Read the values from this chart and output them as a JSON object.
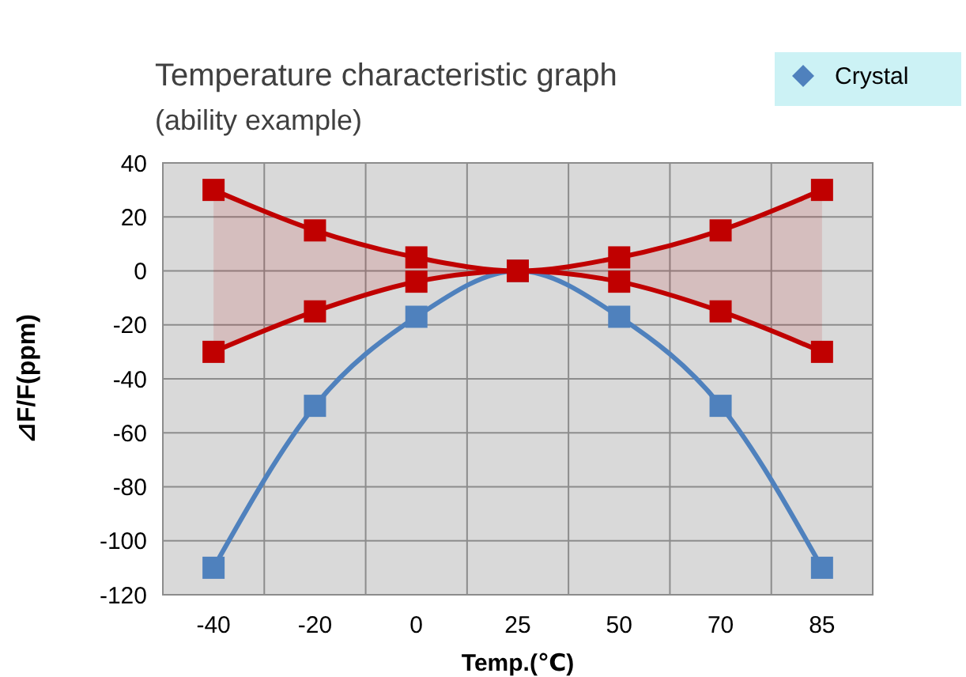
{
  "chart_data": {
    "type": "line",
    "title": "Temperature characteristic graph",
    "subtitle": "(ability example)",
    "xlabel": "Temp.(℃)",
    "ylabel": "⊿F/F(ppm)",
    "categories": [
      "-40",
      "-20",
      "0",
      "25",
      "50",
      "70",
      "85"
    ],
    "series": [
      {
        "name": "Crystal",
        "color": "#4f81bd",
        "values": [
          -110,
          -50,
          -17,
          0,
          -17,
          -50,
          -110
        ]
      },
      {
        "color": "#c00000",
        "values": [
          30,
          15,
          5,
          0,
          5,
          15,
          30
        ],
        "lower": [
          -30,
          -15,
          -4,
          0,
          -4,
          -15,
          -30
        ],
        "upper": [
          30,
          15,
          5,
          0,
          5,
          15,
          30
        ]
      },
      {
        "color": "#c00000",
        "values": [
          -30,
          -15,
          -4,
          0,
          -4,
          -15,
          -30
        ]
      }
    ],
    "ylim": [
      -120,
      40
    ],
    "yticks": [
      -120,
      -100,
      -80,
      -60,
      -40,
      -20,
      0,
      20,
      40
    ],
    "grid": true,
    "legend": "top right",
    "marker": "square",
    "line_style": "solid"
  }
}
